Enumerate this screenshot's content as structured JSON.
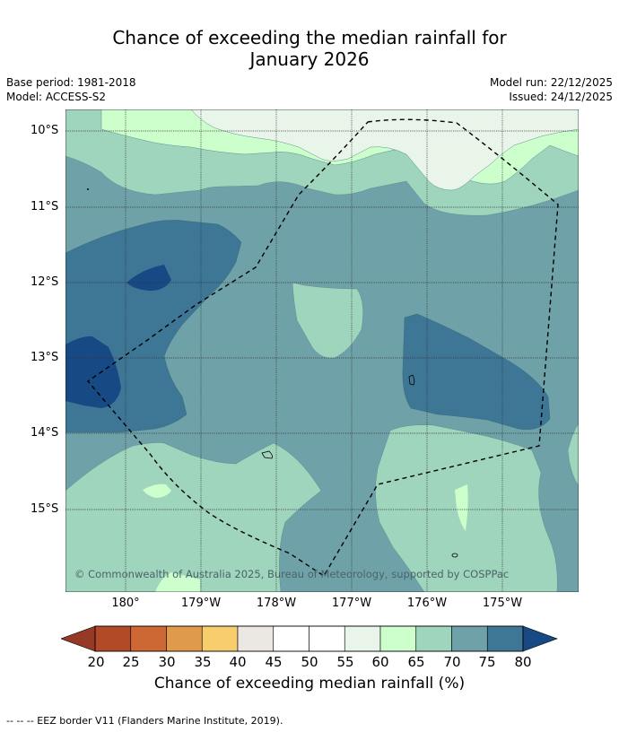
{
  "header": {
    "title_line1": "Chance of exceeding the median rainfall for",
    "title_line2": "January 2026",
    "base_period": "Base period: 1981-2018",
    "model": "Model: ACCESS-S2",
    "model_run": "Model run: 22/12/2025",
    "issued": "Issued: 24/12/2025"
  },
  "map": {
    "attribution": "© Commonwealth of Australia 2025, Bureau of Meteorology, supported by COSPPac",
    "lat_ticks": [
      "10°S",
      "11°S",
      "12°S",
      "13°S",
      "14°S",
      "15°S"
    ],
    "lon_ticks": [
      "180°",
      "179°W",
      "178°W",
      "177°W",
      "176°W",
      "175°W"
    ]
  },
  "legend": {
    "tick_labels": [
      "20",
      "25",
      "30",
      "35",
      "40",
      "45",
      "50",
      "55",
      "60",
      "65",
      "70",
      "75",
      "80"
    ],
    "colors": [
      "#b24a28",
      "#cd6733",
      "#e09a4b",
      "#f8cd6e",
      "#ebe8e4",
      "#ffffff",
      "#ffffff",
      "#eaf5ea",
      "#ccffcc",
      "#9fd4bd",
      "#6ea2a8",
      "#3e7696"
    ],
    "low_color": "#963a25",
    "high_color": "#174a85",
    "label": "Chance of exceeding median rainfall (%)"
  },
  "footnote": "-- -- -- EEZ border V11 (Flanders Marine Institute, 2019)."
}
